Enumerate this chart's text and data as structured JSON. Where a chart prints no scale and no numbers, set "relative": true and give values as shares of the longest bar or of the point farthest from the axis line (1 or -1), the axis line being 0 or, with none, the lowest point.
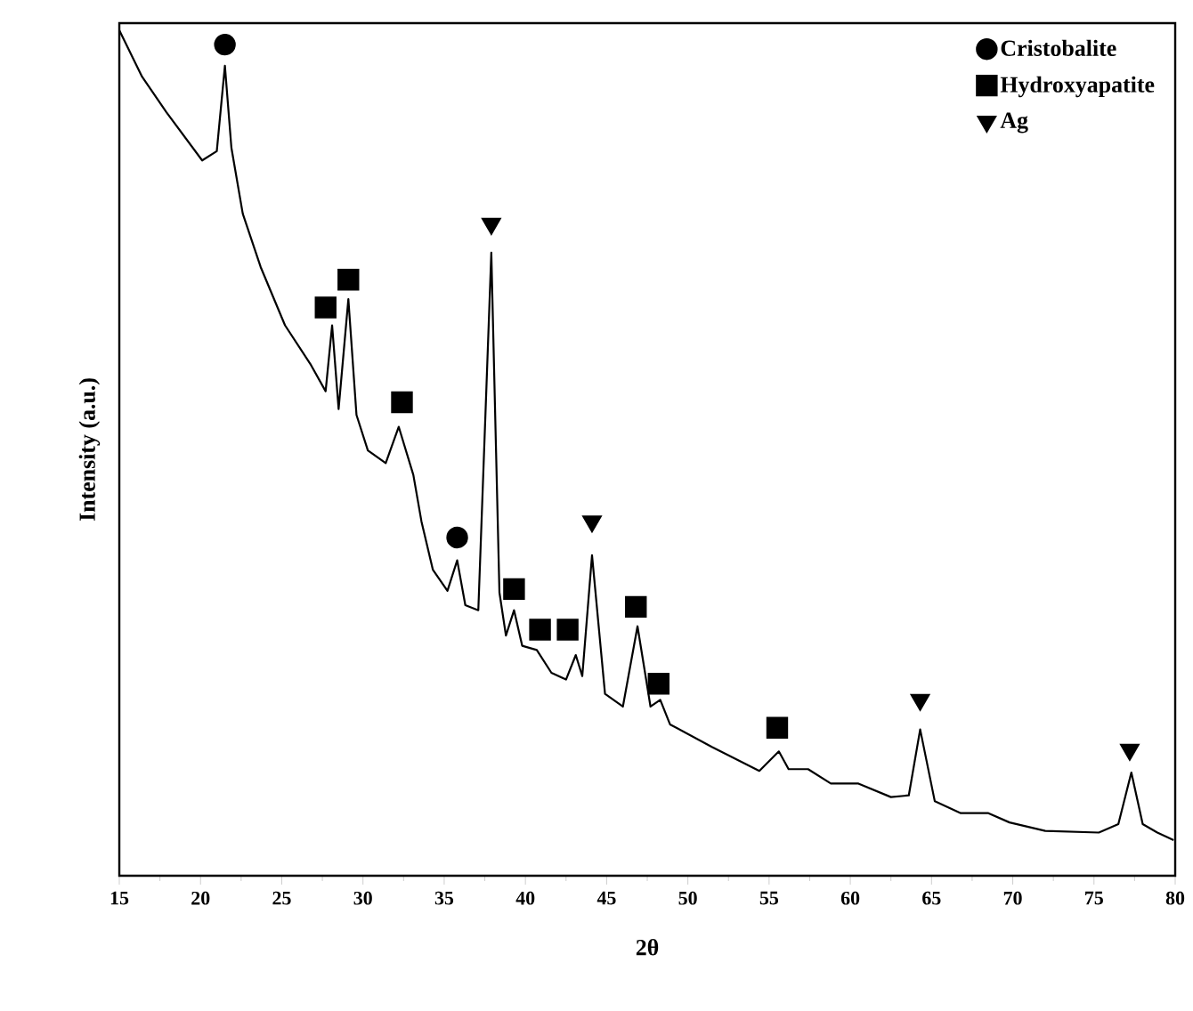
{
  "chart_data": {
    "type": "line",
    "xlabel": "2θ",
    "ylabel": "Intensity (a.u.)",
    "relative": true,
    "xlim": [
      15,
      80
    ],
    "xticks": [
      15,
      20,
      25,
      30,
      35,
      40,
      45,
      50,
      55,
      60,
      65,
      70,
      75,
      80
    ],
    "legend": "top right",
    "grid": false,
    "series": [
      {
        "color": "#000000",
        "marker": "none",
        "x": [
          15.0,
          16.4,
          17.9,
          20.1,
          21.0,
          21.5,
          21.9,
          22.6,
          23.7,
          25.2,
          26.8,
          27.7,
          28.1,
          28.5,
          29.1,
          29.6,
          30.3,
          31.4,
          32.2,
          33.1,
          33.6,
          34.3,
          35.2,
          35.8,
          36.3,
          37.1,
          37.9,
          38.4,
          38.8,
          39.3,
          39.8,
          40.7,
          41.6,
          42.5,
          43.1,
          43.5,
          44.1,
          44.9,
          46.0,
          46.9,
          47.7,
          48.3,
          48.9,
          51.5,
          54.4,
          55.6,
          56.2,
          57.4,
          58.8,
          60.5,
          62.5,
          63.6,
          64.3,
          65.2,
          66.8,
          68.5,
          69.8,
          72.0,
          75.3,
          76.5,
          77.3,
          78.0,
          78.9,
          79.9
        ],
        "values": [
          1.0,
          0.945,
          0.903,
          0.846,
          0.857,
          0.958,
          0.861,
          0.783,
          0.72,
          0.651,
          0.604,
          0.573,
          0.651,
          0.552,
          0.682,
          0.545,
          0.503,
          0.488,
          0.531,
          0.474,
          0.419,
          0.362,
          0.337,
          0.373,
          0.32,
          0.314,
          0.737,
          0.335,
          0.284,
          0.314,
          0.272,
          0.267,
          0.24,
          0.232,
          0.261,
          0.236,
          0.379,
          0.215,
          0.2,
          0.295,
          0.2,
          0.208,
          0.179,
          0.152,
          0.124,
          0.147,
          0.126,
          0.126,
          0.109,
          0.109,
          0.093,
          0.095,
          0.173,
          0.088,
          0.074,
          0.074,
          0.063,
          0.053,
          0.051,
          0.061,
          0.122,
          0.061,
          0.051,
          0.042
        ]
      },
      {
        "type": "scatter",
        "name": "Cristobalite",
        "color": "#000000",
        "marker": "circle",
        "x": [
          21.5,
          35.8
        ],
        "values": [
          0.983,
          0.4
        ]
      },
      {
        "type": "scatter",
        "name": "Hydroxyapatite",
        "color": "#000000",
        "marker": "square",
        "x": [
          27.7,
          29.1,
          32.4,
          39.3,
          40.9,
          42.6,
          46.8,
          48.2,
          55.5
        ],
        "values": [
          0.672,
          0.705,
          0.56,
          0.339,
          0.291,
          0.291,
          0.318,
          0.227,
          0.175
        ]
      },
      {
        "type": "scatter",
        "name": "Ag",
        "color": "#000000",
        "marker": "triangle",
        "x": [
          37.9,
          44.1,
          64.3,
          77.2
        ],
        "values": [
          0.771,
          0.419,
          0.208,
          0.149
        ]
      }
    ]
  }
}
